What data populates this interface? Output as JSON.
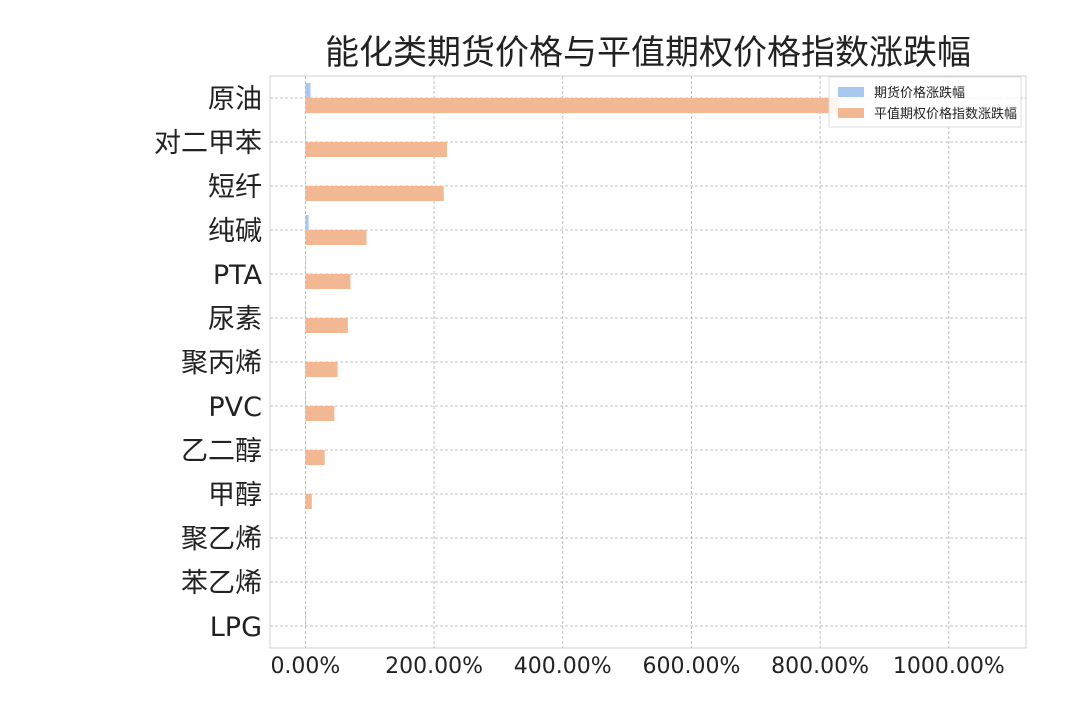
{
  "chart_data": {
    "type": "bar",
    "orientation": "horizontal",
    "title": "能化类期货价格与平值期权价格指数涨跌幅",
    "categories": [
      "原油",
      "对二甲苯",
      "短纤",
      "纯碱",
      "PTA",
      "尿素",
      "聚丙烯",
      "PVC",
      "乙二醇",
      "甲醇",
      "聚乙烯",
      "苯乙烯",
      "LPG"
    ],
    "series": [
      {
        "name": "期货价格涨跌幅",
        "color": "#a9c8ef",
        "values": [
          8.0,
          1.0,
          0.5,
          5.0,
          1.0,
          1.0,
          0.5,
          1.0,
          0.5,
          0.5,
          0.3,
          0.5,
          1.0
        ]
      },
      {
        "name": "平值期权价格指数涨跌幅",
        "color": "#f2b893",
        "values": [
          830,
          220,
          215,
          95,
          70,
          66,
          50,
          45,
          30,
          10,
          0,
          0,
          0
        ]
      }
    ],
    "xlim": [
      -55,
      1120
    ],
    "xticks": [
      0,
      200,
      400,
      600,
      800,
      1000
    ],
    "xtick_labels": [
      "0.00%",
      "200.00%",
      "400.00%",
      "600.00%",
      "800.00%",
      "1000.00%"
    ],
    "grid": true,
    "legend_position": "top-right",
    "xlabel": "",
    "ylabel": ""
  }
}
